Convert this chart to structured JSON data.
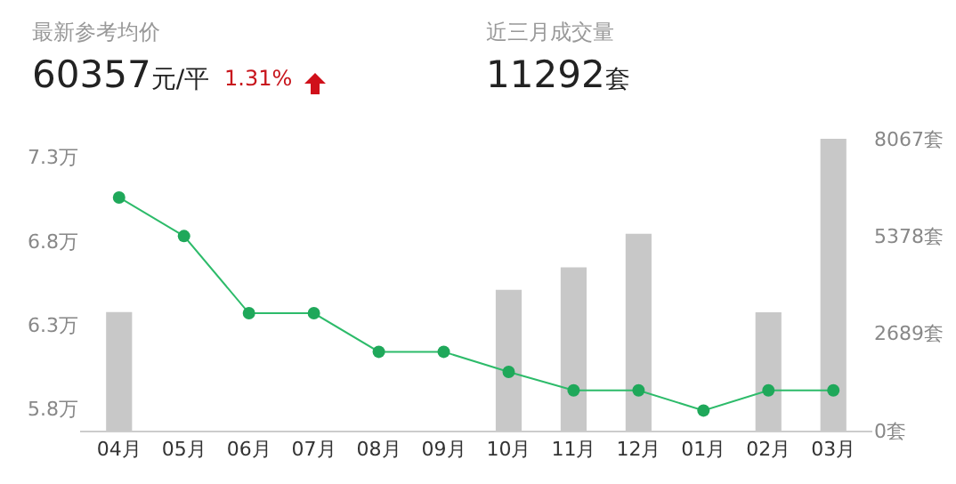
{
  "chart_data": {
    "type": "bar",
    "annotations": [
      "最新参考均价",
      "60357元/平",
      "1.31%",
      "近三月成交量",
      "11292套"
    ],
    "categories": [
      "04月",
      "05月",
      "06月",
      "07月",
      "08月",
      "09月",
      "10月",
      "11月",
      "12月",
      "01月",
      "02月",
      "03月"
    ],
    "series": [
      {
        "axis": "y2",
        "color": "#c8c8c8",
        "values": [
          3280,
          0,
          0,
          0,
          0,
          0,
          3890,
          4510,
          5440,
          0,
          3270,
          8067
        ]
      },
      {
        "type": "line",
        "axis": "y",
        "color": "#2dbb6a",
        "marker": "circle",
        "values": [
          7.06,
          6.83,
          6.37,
          6.37,
          6.14,
          6.14,
          6.02,
          5.91,
          5.91,
          5.79,
          5.91,
          5.91
        ]
      }
    ],
    "ylim": [
      5.67,
      7.41
    ],
    "yticks": [
      {
        "value": 5.8,
        "label": "5.8万"
      },
      {
        "value": 6.3,
        "label": "6.3万"
      },
      {
        "value": 6.8,
        "label": "6.8万"
      },
      {
        "value": 7.3,
        "label": "7.3万"
      }
    ],
    "y2lim": [
      0,
      8067
    ],
    "y2ticks": [
      {
        "value": 0,
        "label": "0套"
      },
      {
        "value": 2689,
        "label": "2689套"
      },
      {
        "value": 5378,
        "label": "5378套"
      },
      {
        "value": 8067,
        "label": "8067套"
      }
    ],
    "grid": false
  }
}
